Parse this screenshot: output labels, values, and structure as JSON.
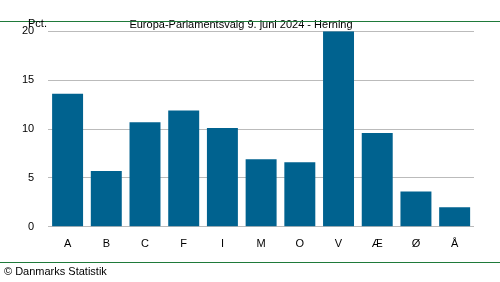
{
  "chart_data": {
    "type": "bar",
    "title": "Europa-Parlamentsvalg 9. juni 2024 - Herning",
    "y_label": "Pct.",
    "source": "© Danmarks Statistik",
    "categories": [
      "A",
      "B",
      "C",
      "F",
      "I",
      "M",
      "O",
      "V",
      "Æ",
      "Ø",
      "Å"
    ],
    "values": [
      13.6,
      5.7,
      10.7,
      11.9,
      10.1,
      6.9,
      6.6,
      20.0,
      9.6,
      3.6,
      2.0
    ],
    "color": "#00628f",
    "ylim": [
      0,
      20
    ],
    "yticks": [
      0,
      5,
      10,
      15,
      20
    ],
    "grid": true
  }
}
